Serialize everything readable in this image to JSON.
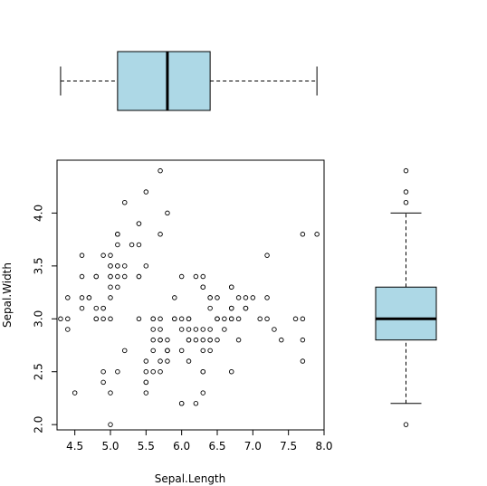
{
  "chart_data": [
    {
      "type": "boxplot",
      "orientation": "horizontal",
      "variable": "Sepal.Length",
      "min": 4.3,
      "q1": 5.1,
      "median": 5.8,
      "q3": 6.4,
      "max": 7.9,
      "fill": "#add8e6",
      "xlim": [
        4.3,
        7.9
      ]
    },
    {
      "type": "scatter",
      "xlabel": "Sepal.Length",
      "ylabel": "Sepal.Width",
      "xlim": [
        4.25,
        8.0
      ],
      "ylim": [
        1.95,
        4.5
      ],
      "xticks": [
        "4.5",
        "5.0",
        "5.5",
        "6.0",
        "6.5",
        "7.0",
        "7.5",
        "8.0"
      ],
      "yticks": [
        "2.0",
        "2.5",
        "3.0",
        "3.5",
        "4.0"
      ],
      "marker": "open-circle",
      "points": [
        [
          5.1,
          3.5
        ],
        [
          4.9,
          3.0
        ],
        [
          4.7,
          3.2
        ],
        [
          4.6,
          3.1
        ],
        [
          5.0,
          3.6
        ],
        [
          5.4,
          3.9
        ],
        [
          4.6,
          3.4
        ],
        [
          5.0,
          3.4
        ],
        [
          4.4,
          2.9
        ],
        [
          4.9,
          3.1
        ],
        [
          5.4,
          3.7
        ],
        [
          4.8,
          3.4
        ],
        [
          4.8,
          3.0
        ],
        [
          4.3,
          3.0
        ],
        [
          5.8,
          4.0
        ],
        [
          5.7,
          4.4
        ],
        [
          5.4,
          3.9
        ],
        [
          5.1,
          3.5
        ],
        [
          5.7,
          3.8
        ],
        [
          5.1,
          3.8
        ],
        [
          5.4,
          3.4
        ],
        [
          5.1,
          3.7
        ],
        [
          4.6,
          3.6
        ],
        [
          5.1,
          3.3
        ],
        [
          4.8,
          3.4
        ],
        [
          5.0,
          3.0
        ],
        [
          5.0,
          3.4
        ],
        [
          5.2,
          3.5
        ],
        [
          5.2,
          3.4
        ],
        [
          4.7,
          3.2
        ],
        [
          4.8,
          3.1
        ],
        [
          5.4,
          3.4
        ],
        [
          5.2,
          4.1
        ],
        [
          5.5,
          4.2
        ],
        [
          4.9,
          3.1
        ],
        [
          5.0,
          3.2
        ],
        [
          5.5,
          3.5
        ],
        [
          4.9,
          3.6
        ],
        [
          4.4,
          3.0
        ],
        [
          5.1,
          3.4
        ],
        [
          5.0,
          3.5
        ],
        [
          4.5,
          2.3
        ],
        [
          4.4,
          3.2
        ],
        [
          5.0,
          3.5
        ],
        [
          5.1,
          3.8
        ],
        [
          4.8,
          3.0
        ],
        [
          5.1,
          3.8
        ],
        [
          4.6,
          3.2
        ],
        [
          5.3,
          3.7
        ],
        [
          5.0,
          3.3
        ],
        [
          7.0,
          3.2
        ],
        [
          6.4,
          3.2
        ],
        [
          6.9,
          3.1
        ],
        [
          5.5,
          2.3
        ],
        [
          6.5,
          2.8
        ],
        [
          5.7,
          2.8
        ],
        [
          6.3,
          3.3
        ],
        [
          4.9,
          2.4
        ],
        [
          6.6,
          2.9
        ],
        [
          5.2,
          2.7
        ],
        [
          5.0,
          2.0
        ],
        [
          5.9,
          3.0
        ],
        [
          6.0,
          2.2
        ],
        [
          6.1,
          2.9
        ],
        [
          5.6,
          2.9
        ],
        [
          6.7,
          3.1
        ],
        [
          5.6,
          3.0
        ],
        [
          5.8,
          2.7
        ],
        [
          6.2,
          2.2
        ],
        [
          5.6,
          2.5
        ],
        [
          5.9,
          3.2
        ],
        [
          6.1,
          2.8
        ],
        [
          6.3,
          2.5
        ],
        [
          6.1,
          2.8
        ],
        [
          6.4,
          2.9
        ],
        [
          6.6,
          3.0
        ],
        [
          6.8,
          2.8
        ],
        [
          6.7,
          3.0
        ],
        [
          6.0,
          2.9
        ],
        [
          5.7,
          2.6
        ],
        [
          5.5,
          2.4
        ],
        [
          5.5,
          2.4
        ],
        [
          5.8,
          2.7
        ],
        [
          6.0,
          2.7
        ],
        [
          5.4,
          3.0
        ],
        [
          6.0,
          3.4
        ],
        [
          6.7,
          3.1
        ],
        [
          6.3,
          2.3
        ],
        [
          5.6,
          3.0
        ],
        [
          5.5,
          2.5
        ],
        [
          5.5,
          2.6
        ],
        [
          6.1,
          3.0
        ],
        [
          5.8,
          2.6
        ],
        [
          5.0,
          2.3
        ],
        [
          5.6,
          2.7
        ],
        [
          5.7,
          3.0
        ],
        [
          5.7,
          2.9
        ],
        [
          6.2,
          2.9
        ],
        [
          5.1,
          2.5
        ],
        [
          5.7,
          2.8
        ],
        [
          6.3,
          3.3
        ],
        [
          5.8,
          2.7
        ],
        [
          7.1,
          3.0
        ],
        [
          6.3,
          2.9
        ],
        [
          6.5,
          3.0
        ],
        [
          7.6,
          3.0
        ],
        [
          4.9,
          2.5
        ],
        [
          7.3,
          2.9
        ],
        [
          6.7,
          2.5
        ],
        [
          7.2,
          3.6
        ],
        [
          6.5,
          3.2
        ],
        [
          6.4,
          2.7
        ],
        [
          6.8,
          3.0
        ],
        [
          5.7,
          2.5
        ],
        [
          5.8,
          2.8
        ],
        [
          6.4,
          3.2
        ],
        [
          6.5,
          3.0
        ],
        [
          7.7,
          3.8
        ],
        [
          7.7,
          2.6
        ],
        [
          6.0,
          2.2
        ],
        [
          6.9,
          3.2
        ],
        [
          5.6,
          2.8
        ],
        [
          7.7,
          2.8
        ],
        [
          6.3,
          2.7
        ],
        [
          6.7,
          3.3
        ],
        [
          7.2,
          3.2
        ],
        [
          6.2,
          2.8
        ],
        [
          6.1,
          3.0
        ],
        [
          6.4,
          2.8
        ],
        [
          7.2,
          3.0
        ],
        [
          7.4,
          2.8
        ],
        [
          7.9,
          3.8
        ],
        [
          6.4,
          2.8
        ],
        [
          6.3,
          2.8
        ],
        [
          6.1,
          2.6
        ],
        [
          7.7,
          3.0
        ],
        [
          6.3,
          3.4
        ],
        [
          6.4,
          3.1
        ],
        [
          6.0,
          3.0
        ],
        [
          6.9,
          3.1
        ],
        [
          6.7,
          3.1
        ],
        [
          6.9,
          3.1
        ],
        [
          5.8,
          2.7
        ],
        [
          6.8,
          3.2
        ],
        [
          6.7,
          3.3
        ],
        [
          6.7,
          3.0
        ],
        [
          6.3,
          2.5
        ],
        [
          6.5,
          3.0
        ],
        [
          6.2,
          3.4
        ],
        [
          5.9,
          3.0
        ]
      ]
    },
    {
      "type": "boxplot",
      "orientation": "vertical",
      "variable": "Sepal.Width",
      "min": 2.2,
      "q1": 2.8,
      "median": 3.0,
      "q3": 3.3,
      "max": 4.0,
      "outliers": [
        4.4,
        4.1,
        4.2,
        2.0
      ],
      "fill": "#add8e6",
      "ylim": [
        1.95,
        4.5
      ]
    }
  ]
}
